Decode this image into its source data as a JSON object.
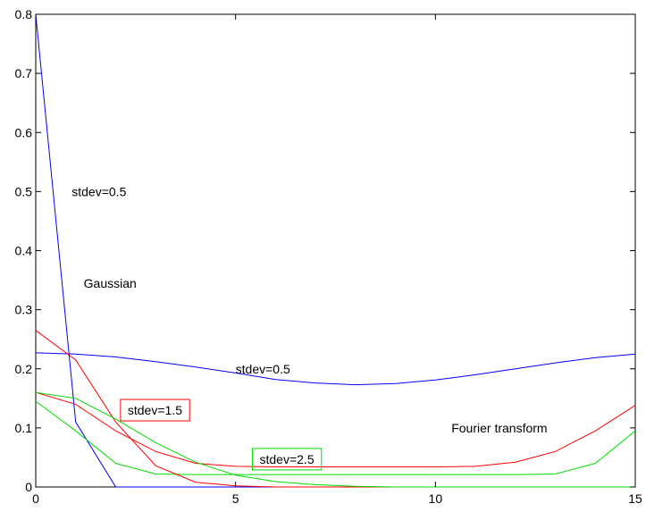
{
  "chart_data": {
    "type": "line",
    "title": "",
    "xlabel": "",
    "ylabel": "",
    "xlim": [
      0,
      15
    ],
    "ylim": [
      0,
      0.8
    ],
    "grid": false,
    "xticks": [
      "0",
      "5",
      "10",
      "15"
    ],
    "yticks": [
      "0",
      "0.1",
      "0.2",
      "0.3",
      "0.4",
      "0.5",
      "0.6",
      "0.7",
      "0.8"
    ],
    "x": [
      0,
      1,
      2,
      3,
      4,
      5,
      6,
      7,
      8,
      9,
      10,
      11,
      12,
      13,
      14,
      15
    ],
    "series": [
      {
        "color": "#0000ff",
        "values": [
          0.8,
          0.11,
          0.0,
          0.0,
          0.0,
          0.0,
          0.0,
          0.0,
          0.0,
          0.0,
          0.0,
          0.0,
          0.0,
          0.0,
          0.0,
          0.0
        ]
      },
      {
        "color": "#ff0000",
        "values": [
          0.16,
          0.14,
          0.095,
          0.06,
          0.04,
          0.035,
          0.034,
          0.034,
          0.034,
          0.034,
          0.034,
          0.035,
          0.042,
          0.06,
          0.095,
          0.138
        ]
      },
      {
        "color": "#00dd00",
        "values": [
          0.145,
          0.095,
          0.04,
          0.022,
          0.021,
          0.021,
          0.021,
          0.021,
          0.021,
          0.021,
          0.021,
          0.021,
          0.021,
          0.022,
          0.04,
          0.095
        ]
      },
      {
        "color": "#0000ff",
        "values": [
          0.227,
          0.225,
          0.22,
          0.212,
          0.203,
          0.193,
          0.182,
          0.176,
          0.173,
          0.175,
          0.181,
          0.19,
          0.2,
          0.21,
          0.219,
          0.225
        ]
      },
      {
        "color": "#ff0000",
        "values": [
          0.265,
          0.215,
          0.11,
          0.036,
          0.008,
          0.002,
          0.0,
          0.0,
          0.0,
          0.0,
          0.0,
          0.0,
          0.0,
          0.0,
          0.0,
          0.0
        ]
      },
      {
        "color": "#00dd00",
        "values": [
          0.16,
          0.15,
          0.115,
          0.075,
          0.042,
          0.02,
          0.009,
          0.004,
          0.001,
          0.0,
          0.0,
          0.0,
          0.0,
          0.0,
          0.0,
          0.0
        ]
      }
    ],
    "annotations": [
      {
        "text": "stdev=0.5",
        "x": 0.9,
        "y": 0.5,
        "box": null
      },
      {
        "text": "Gaussian",
        "x": 1.2,
        "y": 0.345,
        "box": null
      },
      {
        "text": "stdev=0.5",
        "x": 5.0,
        "y": 0.2,
        "box": null
      },
      {
        "text": "stdev=1.5",
        "x": 2.3,
        "y": 0.13,
        "box": "#ff0000"
      },
      {
        "text": "Fourier transform",
        "x": 10.4,
        "y": 0.1,
        "box": null
      },
      {
        "text": "stdev=2.5",
        "x": 5.6,
        "y": 0.047,
        "box": "#00dd00"
      }
    ]
  }
}
